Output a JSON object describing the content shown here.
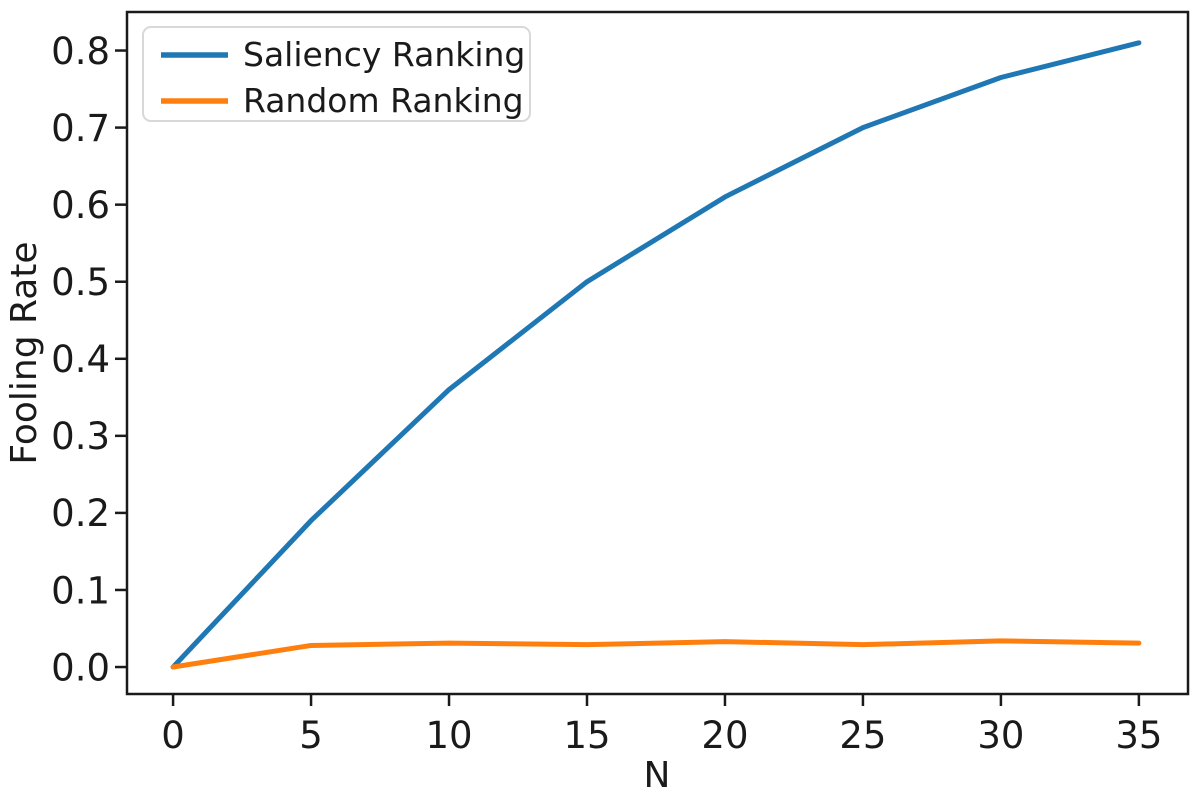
{
  "chart_data": {
    "type": "line",
    "x": [
      0,
      5,
      10,
      15,
      20,
      25,
      30,
      35
    ],
    "series": [
      {
        "name": "Saliency Ranking",
        "color": "#1f77b4",
        "values": [
          0.0,
          0.19,
          0.36,
          0.5,
          0.61,
          0.7,
          0.765,
          0.81
        ]
      },
      {
        "name": "Random Ranking",
        "color": "#ff7f0e",
        "values": [
          0.0,
          0.028,
          0.031,
          0.029,
          0.033,
          0.029,
          0.034,
          0.031
        ]
      }
    ],
    "title": "",
    "xlabel": "N",
    "ylabel": "Fooling Rate",
    "xlim": [
      -1.67,
      36.78
    ],
    "ylim": [
      -0.035,
      0.85
    ],
    "xticks": [
      0,
      5,
      10,
      15,
      20,
      25,
      30,
      35
    ],
    "yticks": [
      0.0,
      0.1,
      0.2,
      0.3,
      0.4,
      0.5,
      0.6,
      0.7,
      0.8
    ],
    "x_tick_format": "integer",
    "y_tick_format": "one_decimal",
    "grid": false,
    "legend_position": "upper left"
  }
}
